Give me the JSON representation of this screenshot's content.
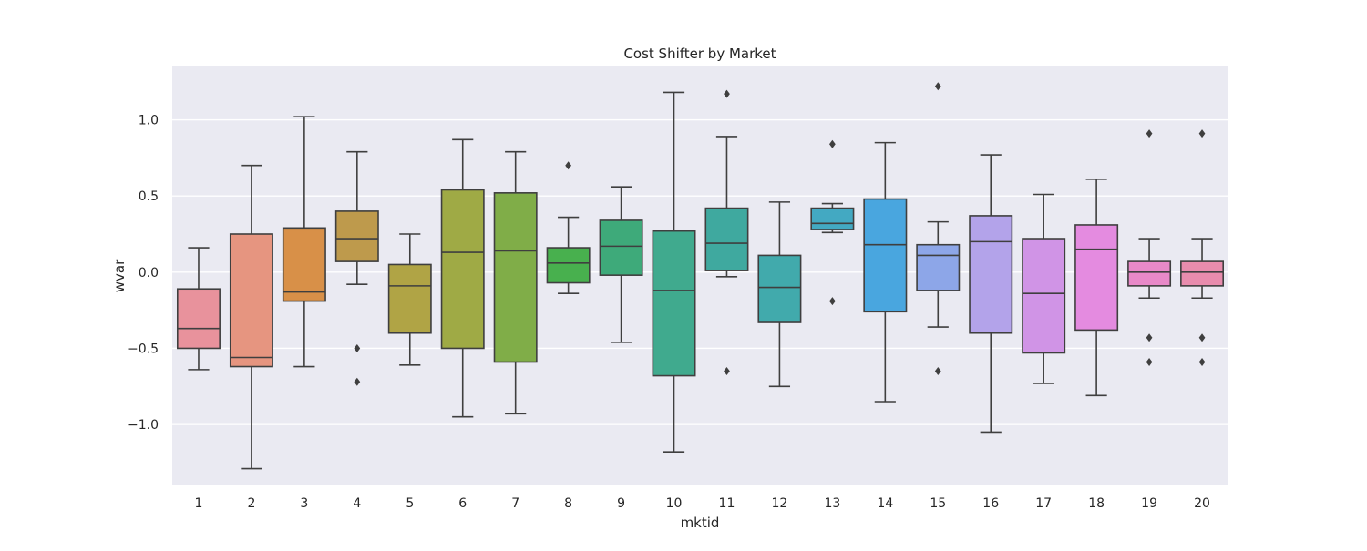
{
  "chart_data": {
    "type": "box",
    "title": "Cost Shifter by Market",
    "xlabel": "mktid",
    "ylabel": "wvar",
    "ylim": [
      -1.4,
      1.35
    ],
    "yticks": [
      -1.0,
      -0.5,
      0.0,
      0.5,
      1.0
    ],
    "ytick_labels": [
      "−1.0",
      "−0.5",
      "0.0",
      "0.5",
      "1.0"
    ],
    "grid": true,
    "categories": [
      "1",
      "2",
      "3",
      "4",
      "5",
      "6",
      "7",
      "8",
      "9",
      "10",
      "11",
      "12",
      "13",
      "14",
      "15",
      "16",
      "17",
      "18",
      "19",
      "20"
    ],
    "boxes": [
      {
        "whisker_low": -0.64,
        "q1": -0.5,
        "median": -0.37,
        "q3": -0.11,
        "whisker_high": 0.16,
        "outliers": [],
        "color": "#E8929C"
      },
      {
        "whisker_low": -1.29,
        "q1": -0.62,
        "median": -0.56,
        "q3": 0.25,
        "whisker_high": 0.7,
        "outliers": [],
        "color": "#E69580"
      },
      {
        "whisker_low": -0.62,
        "q1": -0.19,
        "median": -0.13,
        "q3": 0.29,
        "whisker_high": 1.02,
        "outliers": [],
        "color": "#D89048"
      },
      {
        "whisker_low": -0.08,
        "q1": 0.07,
        "median": 0.22,
        "q3": 0.4,
        "whisker_high": 0.79,
        "outliers": [
          -0.5,
          -0.72
        ],
        "color": "#BE9A4C"
      },
      {
        "whisker_low": -0.61,
        "q1": -0.4,
        "median": -0.09,
        "q3": 0.05,
        "whisker_high": 0.25,
        "outliers": [],
        "color": "#B0A445"
      },
      {
        "whisker_low": -0.95,
        "q1": -0.5,
        "median": 0.13,
        "q3": 0.54,
        "whisker_high": 0.87,
        "outliers": [],
        "color": "#9FAA45"
      },
      {
        "whisker_low": -0.93,
        "q1": -0.59,
        "median": 0.14,
        "q3": 0.52,
        "whisker_high": 0.79,
        "outliers": [],
        "color": "#80AD48"
      },
      {
        "whisker_low": -0.14,
        "q1": -0.07,
        "median": 0.06,
        "q3": 0.16,
        "whisker_high": 0.36,
        "outliers": [
          0.7
        ],
        "color": "#48B04E"
      },
      {
        "whisker_low": -0.46,
        "q1": -0.02,
        "median": 0.17,
        "q3": 0.34,
        "whisker_high": 0.56,
        "outliers": [],
        "color": "#3EAA7A"
      },
      {
        "whisker_low": -1.18,
        "q1": -0.68,
        "median": -0.12,
        "q3": 0.27,
        "whisker_high": 1.18,
        "outliers": [],
        "color": "#40AA8E"
      },
      {
        "whisker_low": -0.03,
        "q1": 0.01,
        "median": 0.19,
        "q3": 0.42,
        "whisker_high": 0.89,
        "outliers": [
          1.17,
          -0.65
        ],
        "color": "#3FA99F"
      },
      {
        "whisker_low": -0.75,
        "q1": -0.33,
        "median": -0.1,
        "q3": 0.11,
        "whisker_high": 0.46,
        "outliers": [],
        "color": "#41AAAC"
      },
      {
        "whisker_low": 0.26,
        "q1": 0.28,
        "median": 0.32,
        "q3": 0.42,
        "whisker_high": 0.45,
        "outliers": [
          0.84,
          -0.19
        ],
        "color": "#43A9C2"
      },
      {
        "whisker_low": -0.85,
        "q1": -0.26,
        "median": 0.18,
        "q3": 0.48,
        "whisker_high": 0.85,
        "outliers": [],
        "color": "#49A6DF"
      },
      {
        "whisker_low": -0.36,
        "q1": -0.12,
        "median": 0.11,
        "q3": 0.18,
        "whisker_high": 0.33,
        "outliers": [
          1.22,
          -0.65
        ],
        "color": "#8DA6E8"
      },
      {
        "whisker_low": -1.05,
        "q1": -0.4,
        "median": 0.2,
        "q3": 0.37,
        "whisker_high": 0.77,
        "outliers": [],
        "color": "#B3A3EA"
      },
      {
        "whisker_low": -0.73,
        "q1": -0.53,
        "median": -0.14,
        "q3": 0.22,
        "whisker_high": 0.51,
        "outliers": [],
        "color": "#D094E6"
      },
      {
        "whisker_low": -0.81,
        "q1": -0.38,
        "median": 0.15,
        "q3": 0.31,
        "whisker_high": 0.61,
        "outliers": [],
        "color": "#E48BE0"
      },
      {
        "whisker_low": -0.17,
        "q1": -0.09,
        "median": 0.0,
        "q3": 0.07,
        "whisker_high": 0.22,
        "outliers": [
          0.91,
          -0.43,
          -0.59
        ],
        "color": "#E889C8"
      },
      {
        "whisker_low": -0.17,
        "q1": -0.09,
        "median": 0.0,
        "q3": 0.07,
        "whisker_high": 0.22,
        "outliers": [
          0.91,
          -0.43,
          -0.59
        ],
        "color": "#E88CAD"
      }
    ],
    "colors": {
      "plot_background": "#EAEAF2",
      "grid": "#FFFFFF",
      "line": "#3F3F3F"
    }
  }
}
